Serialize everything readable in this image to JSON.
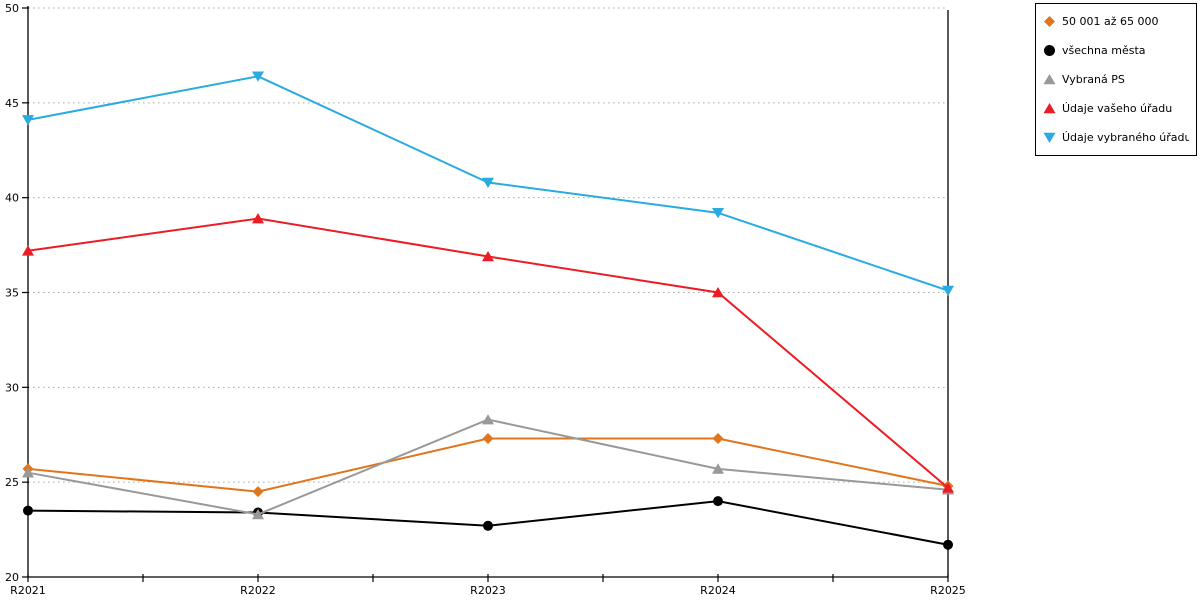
{
  "chart_data": {
    "type": "line",
    "title": "",
    "categories": [
      "R2021",
      "R2022",
      "R2023",
      "R2024",
      "R2025"
    ],
    "series": [
      {
        "name": "50 001 až 65 000",
        "color": "#E0751C",
        "marker": "diamond",
        "values": [
          25.7,
          24.5,
          27.3,
          27.3,
          24.8
        ]
      },
      {
        "name": "všechna města",
        "color": "#000000",
        "marker": "circle",
        "values": [
          23.5,
          23.4,
          22.7,
          24.0,
          21.7
        ]
      },
      {
        "name": "Vybraná PS",
        "color": "#999999",
        "marker": "triangle-up",
        "values": [
          25.5,
          23.3,
          28.3,
          25.7,
          24.6
        ]
      },
      {
        "name": "Údaje vašeho úřadu",
        "color": "#EC1C24",
        "marker": "triangle-up",
        "values": [
          37.2,
          38.9,
          36.9,
          35.0,
          24.7
        ]
      },
      {
        "name": "Údaje vybraného úřadu",
        "color": "#29ABE2",
        "marker": "triangle-down",
        "values": [
          44.1,
          46.4,
          40.8,
          39.2,
          35.1
        ]
      }
    ],
    "ylim": [
      20,
      50
    ],
    "yticks": [
      20,
      25,
      30,
      35,
      40,
      45,
      50
    ],
    "xlabel": "",
    "ylabel": "",
    "grid": "horizontal-dotted",
    "gridline_color": "#ADADAD",
    "axis_color": "#000000",
    "legend_position": "outside-top-right"
  }
}
